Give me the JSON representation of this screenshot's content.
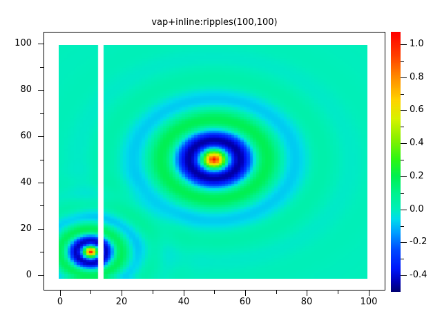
{
  "chart_data": {
    "type": "heatmap",
    "title": "vap+inline:ripples(100,100)",
    "grid_size": [
      100,
      100
    ],
    "x_range": [
      0,
      100
    ],
    "y_range": [
      0,
      100
    ],
    "x_ticks": [
      0,
      20,
      40,
      60,
      80,
      100
    ],
    "x_minor_ticks": [
      10,
      30,
      50,
      70,
      90
    ],
    "y_ticks": [
      0,
      20,
      40,
      60,
      80,
      100
    ],
    "y_minor_ticks": [
      10,
      30,
      50,
      70,
      90
    ],
    "z_range": [
      -0.45,
      1.05
    ],
    "background_value": 0,
    "ripples": [
      {
        "center_x": 50,
        "center_y": 50,
        "amplitude": 1.04,
        "wavelength": 18.0,
        "decay": 10.5
      },
      {
        "center_x": 10,
        "center_y": 10,
        "amplitude": 1.0,
        "wavelength": 10.5,
        "decay": 6.0
      }
    ],
    "masked_strip": {
      "x_from": 12.4,
      "x_to": 14.05
    },
    "colorbar": {
      "zmin": -0.5,
      "zmax": 1.075,
      "ticks": [
        {
          "value": 1.0,
          "label": "1.0"
        },
        {
          "value": 0.8,
          "label": "0.8"
        },
        {
          "value": 0.6,
          "label": "0.6"
        },
        {
          "value": 0.4,
          "label": "0.4"
        },
        {
          "value": 0.2,
          "label": "0.2"
        },
        {
          "value": 0.0,
          "label": "0.0"
        },
        {
          "value": -0.2,
          "label": "-0.2"
        },
        {
          "value": -0.4,
          "label": "-0.4"
        }
      ],
      "minor_ticks": [
        0.9,
        0.7,
        0.5,
        0.3,
        0.1,
        -0.1,
        -0.3
      ]
    },
    "colormap": [
      {
        "z": -0.5,
        "color": "#000074"
      },
      {
        "z": -0.44,
        "color": "#0000b6"
      },
      {
        "z": -0.36,
        "color": "#0018fa"
      },
      {
        "z": -0.25,
        "color": "#0048ff"
      },
      {
        "z": -0.14,
        "color": "#00a0ff"
      },
      {
        "z": -0.06,
        "color": "#00dcec"
      },
      {
        "z": 0.0,
        "color": "#00efbb"
      },
      {
        "z": 0.1,
        "color": "#00f28c"
      },
      {
        "z": 0.2,
        "color": "#00f050"
      },
      {
        "z": 0.3,
        "color": "#2cf614"
      },
      {
        "z": 0.43,
        "color": "#8cf000"
      },
      {
        "z": 0.55,
        "color": "#d8f200"
      },
      {
        "z": 0.66,
        "color": "#ffd400"
      },
      {
        "z": 0.8,
        "color": "#ff8c00"
      },
      {
        "z": 0.93,
        "color": "#ff4000"
      },
      {
        "z": 1.075,
        "color": "#ff0000"
      }
    ],
    "axis_color": "#000000",
    "figure_background": "#ffffff"
  }
}
